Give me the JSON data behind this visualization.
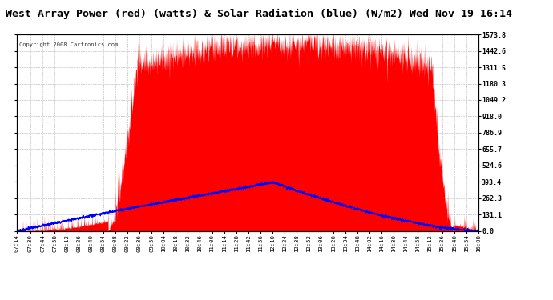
{
  "title": "West Array Power (red) (watts) & Solar Radiation (blue) (W/m2) Wed Nov 19 16:14",
  "copyright": "Copyright 2008 Cartronics.com",
  "bg_color": "#ffffff",
  "plot_bg_color": "#ffffff",
  "grid_color": "#aaaaaa",
  "red_color": "#ff0000",
  "blue_color": "#0000ff",
  "title_fontsize": 9.5,
  "yticks_right": [
    0.0,
    131.1,
    262.3,
    393.4,
    524.6,
    655.7,
    786.9,
    918.0,
    1049.2,
    1180.3,
    1311.5,
    1442.6,
    1573.8
  ],
  "time_labels": [
    "07:14",
    "07:30",
    "07:44",
    "07:58",
    "08:12",
    "08:26",
    "08:40",
    "08:54",
    "09:08",
    "09:22",
    "09:36",
    "09:50",
    "10:04",
    "10:18",
    "10:32",
    "10:46",
    "11:00",
    "11:14",
    "11:28",
    "11:42",
    "11:56",
    "12:10",
    "12:24",
    "12:38",
    "12:52",
    "13:06",
    "13:20",
    "13:34",
    "13:48",
    "14:02",
    "14:16",
    "14:30",
    "14:44",
    "14:58",
    "15:12",
    "15:26",
    "15:40",
    "15:54",
    "16:08"
  ],
  "ymax": 1573.8,
  "ymin": 0.0,
  "power_peak": 1500,
  "solar_peak": 390,
  "solar_peak_time": "12:10",
  "power_rise_start": "09:00",
  "power_rise_end": "09:36",
  "power_drop_start": "15:14",
  "power_drop_end": "15:40"
}
